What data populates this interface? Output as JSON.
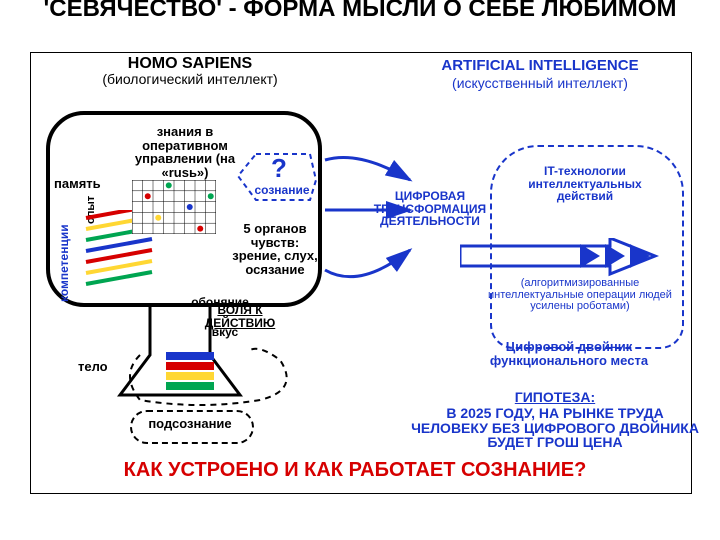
{
  "title_top": "'СЕВЯЧЕСТВО' - ФОРМА МЫСЛИ О СЕБЕ ЛЮБИМОМ",
  "col_left": {
    "h1": "HOMO SAPIENS",
    "h2": "(биологический интеллект)"
  },
  "col_right": {
    "h1": "ARTIFICIAL INTELLIGENCE",
    "h2": "(искусственный интеллект)"
  },
  "left": {
    "knowledge": "знания в оперативном управлении (на «rusь»)",
    "memory": "память",
    "competence": "компетенции",
    "skills": "опыт",
    "q": "?",
    "conscious": "сознание",
    "senses": "5 органов чувств: зрение, слух, осязание",
    "smell": "обоняние",
    "will": "ВОЛЯ К ДЕЙСТВИЮ",
    "taste": "вкус",
    "body": "тело",
    "subcon": "подсознание"
  },
  "right": {
    "transform": "ЦИФРОВАЯ ТРАНСФОРМАЦИЯ ДЕЯТЕЛЬНОСТИ",
    "it": "IT-технологии интеллектуальных действий",
    "algo": "(алгоритмизированные интеллектуальные операции людей усилены роботами)",
    "twin": "Цифровой двойник функционального места",
    "hyp_h": "ГИПОТЕЗА:",
    "hyp": "В 2025 ГОДУ, НА РЫНКЕ ТРУДА ЧЕЛОВЕКУ БЕЗ ЦИФРОВОГО ДВОЙНИКА БУДЕТ ГРОШ ЦЕНА"
  },
  "bottom": "КАК УСТРОЕНО И КАК РАБОТАЕТ СОЗНАНИЕ?",
  "stripes": [
    "#d60000",
    "#ffd733",
    "#00a551",
    "#1935ca",
    "#d60000",
    "#ffd733",
    "#00a551"
  ],
  "body_stripes": [
    "#1935ca",
    "#d60000",
    "#ffd733",
    "#00a551"
  ],
  "grid": {
    "cols": 8,
    "rows": 5,
    "dots": [
      {
        "r": 1,
        "c": 1,
        "col": "#d60000"
      },
      {
        "r": 0,
        "c": 3,
        "col": "#00a551"
      },
      {
        "r": 2,
        "c": 5,
        "col": "#1935ca"
      },
      {
        "r": 3,
        "c": 2,
        "col": "#ffd733"
      },
      {
        "r": 4,
        "c": 6,
        "col": "#d60000"
      },
      {
        "r": 1,
        "c": 7,
        "col": "#00a551"
      }
    ]
  },
  "colors": {
    "blue": "#1935ca",
    "red": "#d60000"
  }
}
